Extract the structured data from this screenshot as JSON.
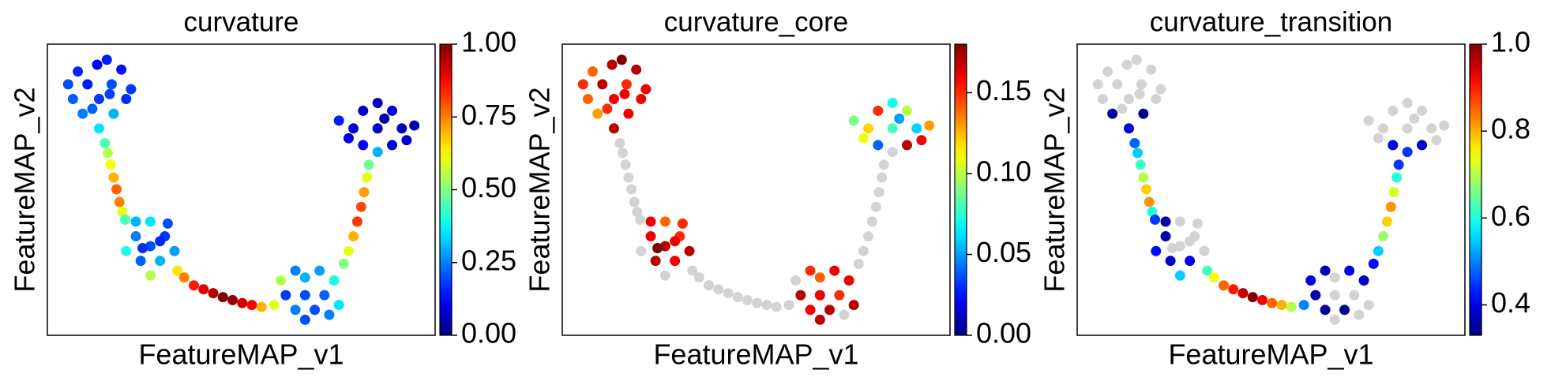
{
  "chart_data": [
    {
      "type": "scatter",
      "title": "curvature",
      "x_label": "FeatureMAP_v1",
      "y_label": "FeatureMAP_v2",
      "colormap": "jet",
      "null_color": "#d3d3d3",
      "clim": [
        0,
        1
      ],
      "cticks": [
        {
          "value": 0,
          "label": "0.00"
        },
        {
          "value": 0.25,
          "label": "0.25"
        },
        {
          "value": 0.5,
          "label": "0.50"
        },
        {
          "value": 0.75,
          "label": "0.75"
        },
        {
          "value": 1,
          "label": "1.00"
        }
      ],
      "x": [
        5.7,
        4.5,
        7,
        3,
        8.5,
        5.5,
        4,
        7.2,
        5.7,
        2.5,
        6.5,
        9,
        3.5,
        8,
        5,
        6.8,
        6.3,
        6.6,
        6.9,
        7.2,
        7.5,
        7.8,
        8.1,
        8.4,
        11,
        9.5,
        12.5,
        10,
        12,
        11,
        8.5,
        13.5,
        11,
        9.5,
        12.8,
        10.2,
        12,
        13.8,
        14.5,
        15.5,
        16.5,
        17.5,
        18.5,
        19.5,
        20.5,
        21.5,
        22.5,
        27,
        25,
        29,
        26,
        28,
        27,
        24.5,
        30,
        23.8,
        30.5,
        26,
        28.5,
        27,
        29.5,
        31,
        31.5,
        32,
        32.4,
        32.8,
        33.1,
        33.4,
        33.6,
        34.5,
        32,
        37,
        33,
        36,
        33,
        36,
        30.5,
        38.3,
        34.5,
        34.5,
        31.5,
        37.5,
        35.2
      ],
      "y": [
        24,
        25.5,
        25.5,
        24,
        24,
        27.5,
        22.5,
        22.5,
        21,
        25.5,
        28,
        25,
        26.8,
        27,
        23,
        24.5,
        19.5,
        18.5,
        17.3,
        16,
        14.8,
        13.5,
        12.5,
        11.7,
        9,
        10,
        10,
        7.5,
        7.5,
        11.5,
        8.5,
        8.5,
        6,
        11.5,
        11.3,
        8.8,
        9.5,
        6.5,
        5.8,
        5,
        4.6,
        4.2,
        3.8,
        3.5,
        3.2,
        3,
        2.8,
        4,
        4,
        4,
        2.5,
        2.5,
        5.8,
        5.5,
        5.5,
        3,
        3,
        6.5,
        6.5,
        1.5,
        2,
        7.2,
        8.5,
        10,
        11.5,
        13,
        14.5,
        16,
        17.3,
        21,
        21,
        21,
        22.8,
        22.8,
        19.3,
        19.3,
        21.8,
        21.3,
        23.6,
        18.6,
        20,
        19.8,
        22
      ],
      "values": [
        0.18,
        0.15,
        0.2,
        0.22,
        0.17,
        0.12,
        0.25,
        0.3,
        0.35,
        0.2,
        0.15,
        0.18,
        0.16,
        0.14,
        0.22,
        0.19,
        0.45,
        0.55,
        0.62,
        0.7,
        0.78,
        0.75,
        0.6,
        0.45,
        0.2,
        0.25,
        0.18,
        0.22,
        0.3,
        0.35,
        0.4,
        0.28,
        0.55,
        0.3,
        0.2,
        0.17,
        0.16,
        0.65,
        0.75,
        0.85,
        0.9,
        0.95,
        1,
        0.98,
        0.92,
        0.88,
        0.7,
        0.2,
        0.18,
        0.22,
        0.25,
        0.2,
        0.3,
        0.55,
        0.4,
        0.6,
        0.35,
        0.25,
        0.28,
        0.2,
        0.25,
        0.5,
        0.6,
        0.7,
        0.82,
        0.8,
        0.72,
        0.6,
        0.48,
        0.06,
        0.08,
        0.05,
        0.07,
        0.1,
        0.12,
        0.09,
        0.15,
        0.05,
        0.06,
        0.3,
        0.1,
        0.08,
        0.04
      ]
    },
    {
      "type": "scatter",
      "title": "curvature_core",
      "x_label": "FeatureMAP_v1",
      "y_label": "FeatureMAP_v2",
      "colormap": "jet",
      "null_color": "#d3d3d3",
      "clim": [
        0,
        0.18
      ],
      "cticks": [
        {
          "value": 0,
          "label": "0.00"
        },
        0.05,
        {
          "value": 0.1,
          "label": "0.10"
        },
        0.15
      ],
      "x": [
        5.7,
        4.5,
        7,
        3,
        8.5,
        5.5,
        4,
        7.2,
        5.7,
        2.5,
        6.5,
        9,
        3.5,
        8,
        5,
        6.8,
        6.3,
        6.6,
        6.9,
        7.2,
        7.5,
        7.8,
        8.1,
        8.4,
        11,
        9.5,
        12.5,
        10,
        12,
        11,
        8.5,
        13.5,
        11,
        9.5,
        12.8,
        10.2,
        12,
        13.8,
        14.5,
        15.5,
        16.5,
        17.5,
        18.5,
        19.5,
        20.5,
        21.5,
        22.5,
        27,
        25,
        29,
        26,
        28,
        27,
        24.5,
        30,
        23.8,
        30.5,
        26,
        28.5,
        27,
        29.5,
        31,
        31.5,
        32,
        32.4,
        32.8,
        33.1,
        33.4,
        33.6,
        34.5,
        32,
        37,
        33,
        36,
        33,
        36,
        30.5,
        38.3,
        34.5,
        34.5,
        31.5,
        37.5,
        35.2
      ],
      "y": [
        24,
        25.5,
        25.5,
        24,
        24,
        27.5,
        22.5,
        22.5,
        21,
        25.5,
        28,
        25,
        26.8,
        27,
        23,
        24.5,
        19.5,
        18.5,
        17.3,
        16,
        14.8,
        13.5,
        12.5,
        11.7,
        9,
        10,
        10,
        7.5,
        7.5,
        11.5,
        8.5,
        8.5,
        6,
        11.5,
        11.3,
        8.8,
        9.5,
        6.5,
        5.8,
        5,
        4.6,
        4.2,
        3.8,
        3.5,
        3.2,
        3,
        2.8,
        4,
        4,
        4,
        2.5,
        2.5,
        5.8,
        5.5,
        5.5,
        3,
        3,
        6.5,
        6.5,
        1.5,
        2,
        7.2,
        8.5,
        10,
        11.5,
        13,
        14.5,
        16,
        17.3,
        21,
        21,
        21,
        22.8,
        22.8,
        19.3,
        19.3,
        21.8,
        21.3,
        23.6,
        18.6,
        20,
        19.8,
        22
      ],
      "values": [
        0.16,
        0.17,
        0.15,
        0.14,
        0.16,
        0.17,
        0.13,
        0.16,
        0.17,
        0.15,
        0.18,
        0.16,
        0.14,
        0.17,
        0.15,
        0.16,
        null,
        null,
        null,
        null,
        null,
        null,
        null,
        null,
        0.17,
        0.16,
        0.15,
        0.17,
        0.16,
        0.14,
        null,
        0.17,
        null,
        0.16,
        0.15,
        0.18,
        0.16,
        null,
        null,
        null,
        null,
        null,
        null,
        null,
        null,
        null,
        null,
        0.16,
        0.17,
        0.15,
        0.16,
        0.17,
        0.14,
        null,
        0.16,
        null,
        0.17,
        0.15,
        0.16,
        0.17,
        null,
        null,
        null,
        null,
        null,
        null,
        null,
        null,
        null,
        0.08,
        0.12,
        0.06,
        0.15,
        0.1,
        0.04,
        0.17,
        0.09,
        0.13,
        0.07,
        null,
        0.11,
        0.16,
        0.05
      ]
    },
    {
      "type": "scatter",
      "title": "curvature_transition",
      "x_label": "FeatureMAP_v1",
      "y_label": "FeatureMAP_v2",
      "colormap": "jet",
      "null_color": "#d3d3d3",
      "clim": [
        0.33,
        1
      ],
      "cticks": [
        0.4,
        0.6,
        0.8,
        {
          "value": 1,
          "label": "1.0"
        }
      ],
      "x": [
        5.7,
        4.5,
        7,
        3,
        8.5,
        5.5,
        4,
        7.2,
        5.7,
        2.5,
        6.5,
        9,
        3.5,
        8,
        5,
        6.8,
        6.3,
        6.6,
        6.9,
        7.2,
        7.5,
        7.8,
        8.1,
        8.4,
        11,
        9.5,
        12.5,
        10,
        12,
        11,
        8.5,
        13.5,
        11,
        9.5,
        12.8,
        10.2,
        12,
        13.8,
        14.5,
        15.5,
        16.5,
        17.5,
        18.5,
        19.5,
        20.5,
        21.5,
        22.5,
        27,
        25,
        29,
        26,
        28,
        27,
        24.5,
        30,
        23.8,
        30.5,
        26,
        28.5,
        27,
        29.5,
        31,
        31.5,
        32,
        32.4,
        32.8,
        33.1,
        33.4,
        33.6,
        34.5,
        32,
        37,
        33,
        36,
        33,
        36,
        30.5,
        38.3,
        34.5,
        34.5,
        31.5,
        37.5,
        35.2
      ],
      "y": [
        24,
        25.5,
        25.5,
        24,
        24,
        27.5,
        22.5,
        22.5,
        21,
        25.5,
        28,
        25,
        26.8,
        27,
        23,
        24.5,
        19.5,
        18.5,
        17.3,
        16,
        14.8,
        13.5,
        12.5,
        11.7,
        9,
        10,
        10,
        7.5,
        7.5,
        11.5,
        8.5,
        8.5,
        6,
        11.5,
        11.3,
        8.8,
        9.5,
        6.5,
        5.8,
        5,
        4.6,
        4.2,
        3.8,
        3.5,
        3.2,
        3,
        2.8,
        4,
        4,
        4,
        2.5,
        2.5,
        5.8,
        5.5,
        5.5,
        3,
        3,
        6.5,
        6.5,
        1.5,
        2,
        7.2,
        8.5,
        10,
        11.5,
        13,
        14.5,
        16,
        17.3,
        21,
        21,
        21,
        22.8,
        22.8,
        19.3,
        19.3,
        21.8,
        21.3,
        23.6,
        18.6,
        20,
        19.8,
        22
      ],
      "values": [
        null,
        null,
        null,
        null,
        null,
        null,
        0.35,
        0.34,
        0.4,
        null,
        null,
        null,
        null,
        null,
        null,
        null,
        0.48,
        0.55,
        0.62,
        0.7,
        0.78,
        0.82,
        0.6,
        0.45,
        null,
        0.36,
        null,
        0.38,
        0.4,
        null,
        0.42,
        null,
        0.55,
        0.35,
        null,
        null,
        null,
        0.62,
        0.75,
        0.85,
        0.9,
        0.95,
        1,
        0.92,
        0.85,
        0.8,
        0.7,
        null,
        0.36,
        null,
        0.35,
        0.34,
        null,
        0.4,
        0.38,
        0.5,
        null,
        0.37,
        0.4,
        null,
        null,
        0.42,
        0.55,
        0.68,
        0.78,
        0.82,
        0.72,
        0.6,
        0.45,
        null,
        null,
        null,
        null,
        null,
        0.4,
        0.38,
        null,
        null,
        null,
        0.45,
        null,
        null,
        null
      ]
    }
  ]
}
